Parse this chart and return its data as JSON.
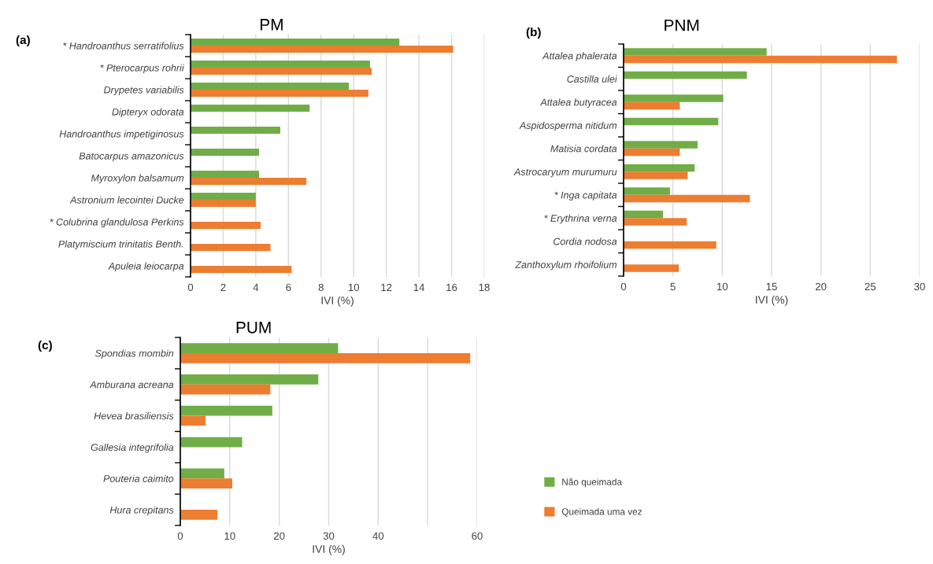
{
  "chart_data": [
    {
      "type": "bar",
      "orientation": "horizontal",
      "title": "PM",
      "xlabel": "IVI (%)",
      "annotations": [
        "(a)"
      ],
      "categories": [
        "* Handroanthus serratifolius",
        "* Pterocarpus rohrii",
        "Drypetes variabilis",
        "Dipteryx odorata",
        "Handroanthus impetiginosus",
        "Batocarpus amazonicus",
        "Myroxylon balsamum",
        "Astronium lecointei Ducke",
        "* Colubrina glandulosa Perkins",
        "Platymiscium trinitatis Benth.",
        "Apuleia leiocarpa"
      ],
      "series": [
        {
          "color": "#70ad47",
          "values": [
            12.8,
            11.0,
            9.7,
            7.3,
            5.5,
            4.2,
            4.2,
            4.0,
            null,
            null,
            null
          ]
        },
        {
          "color": "#ed7d31",
          "values": [
            16.1,
            11.1,
            10.9,
            null,
            null,
            null,
            7.1,
            4.0,
            4.3,
            4.9,
            6.2
          ]
        }
      ],
      "xlim": [
        0,
        18
      ],
      "xticks": [
        0,
        2,
        4,
        6,
        8,
        10,
        12,
        14,
        16,
        18
      ],
      "grid": "x",
      "legend": false
    },
    {
      "type": "bar",
      "orientation": "horizontal",
      "title": "PNM",
      "xlabel": "IVI (%)",
      "annotations": [
        "(b)"
      ],
      "categories": [
        "Attalea phalerata",
        "Castilla ulei",
        "Attalea butyracea",
        "Aspidosperma nitidum",
        "Matisia cordata",
        "Astrocaryum murumuru",
        "* Inga capitata",
        "* Erythrina verna",
        "Cordia nodosa",
        "Zanthoxylum rhoifolium"
      ],
      "series": [
        {
          "color": "#70ad47",
          "values": [
            14.5,
            12.5,
            10.1,
            9.6,
            7.5,
            7.2,
            4.7,
            4.0,
            null,
            null
          ]
        },
        {
          "color": "#ed7d31",
          "values": [
            27.7,
            null,
            5.7,
            null,
            5.7,
            6.5,
            12.8,
            6.4,
            9.4,
            5.6
          ]
        }
      ],
      "xlim": [
        0,
        30
      ],
      "xticks": [
        0,
        5,
        10,
        15,
        20,
        25,
        30
      ],
      "grid": "x",
      "legend": false
    },
    {
      "type": "bar",
      "orientation": "horizontal",
      "title": "PUM",
      "xlabel": "IVI (%)",
      "annotations": [
        "(c)"
      ],
      "categories": [
        "Spondias mombin",
        "Amburana acreana",
        "Hevea brasiliensis",
        "Gallesia integrifolia",
        "Pouteria caimito",
        "Hura crepitans"
      ],
      "series": [
        {
          "name": "Não queimada",
          "color": "#70ad47",
          "values": [
            31.9,
            27.9,
            18.6,
            12.5,
            8.9,
            null
          ]
        },
        {
          "name": "Queimada uma vez",
          "color": "#ed7d31",
          "values": [
            58.6,
            18.2,
            5.1,
            null,
            10.5,
            7.5
          ]
        }
      ],
      "xlim": [
        0,
        60
      ],
      "xticks": [
        0,
        10,
        20,
        30,
        40,
        {
          "value": 50,
          "label": null
        },
        60
      ],
      "grid": "x",
      "legend": "right"
    }
  ]
}
